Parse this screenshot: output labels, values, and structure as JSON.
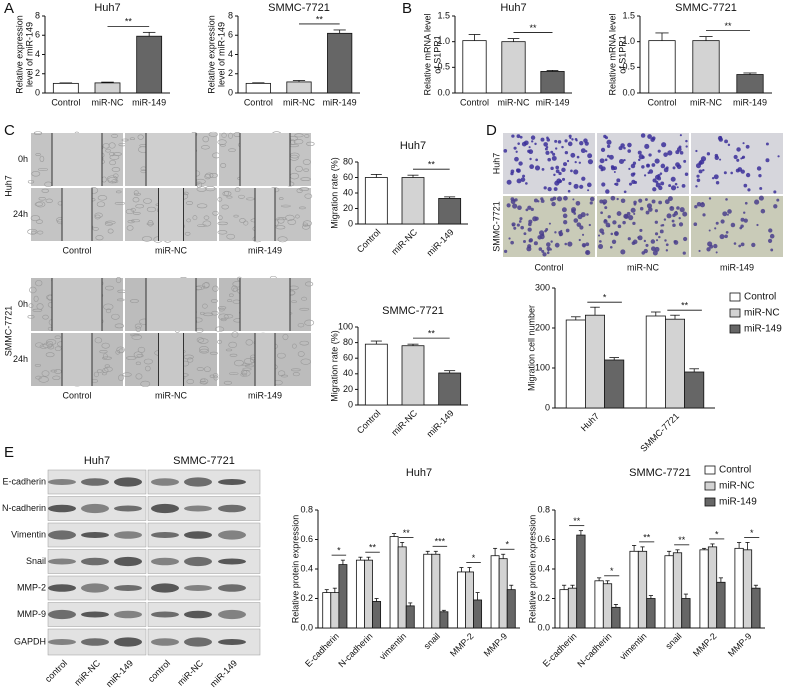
{
  "panels": [
    "A",
    "B",
    "C",
    "D",
    "E"
  ],
  "migration_images": {
    "groups": [
      {
        "label": "Huh7",
        "rows": [
          "0h",
          "24h"
        ]
      },
      {
        "label": "SMMC-7721",
        "rows": [
          "0h",
          "24h"
        ]
      }
    ],
    "columns": [
      "Control",
      "miR-NC",
      "miR-149"
    ]
  },
  "invasion_images": {
    "rows": [
      "Huh7",
      "SMMC-7721"
    ],
    "columns": [
      "Control",
      "miR-NC",
      "miR-149"
    ]
  },
  "blot": {
    "groups": [
      "Huh7",
      "SMMC-7721"
    ],
    "proteins": [
      "E-cadherin",
      "N-cadherin",
      "Vimentin",
      "Snail",
      "MMP-2",
      "MMP-9",
      "GAPDH"
    ],
    "lanes": [
      "control",
      "miR-NC",
      "miR-149"
    ]
  },
  "chart_data": [
    {
      "type": "bar",
      "title": "Huh7",
      "ylabel": [
        "Relative expression",
        "level of miR-149"
      ],
      "categories": [
        "Control",
        "miR-NC",
        "miR-149"
      ],
      "values": [
        1.0,
        1.05,
        5.9
      ],
      "errors": [
        0.05,
        0.08,
        0.4
      ],
      "colors": [
        "#ffffff",
        "#d3d3d3",
        "#666666"
      ],
      "ylim": [
        0,
        8
      ],
      "yticks": [
        0,
        2,
        4,
        6,
        8
      ],
      "significance": "**"
    },
    {
      "type": "bar",
      "title": "SMMC-7721",
      "ylabel": [
        "Relative expression",
        "level of miR-149"
      ],
      "categories": [
        "Control",
        "miR-NC",
        "miR-149"
      ],
      "values": [
        1.0,
        1.15,
        6.2
      ],
      "errors": [
        0.06,
        0.15,
        0.35
      ],
      "colors": [
        "#ffffff",
        "#d3d3d3",
        "#666666"
      ],
      "ylim": [
        0,
        8
      ],
      "yticks": [
        0,
        2,
        4,
        6,
        8
      ],
      "significance": "**"
    },
    {
      "type": "bar",
      "title": "Huh7",
      "ylabel": [
        "Relative mRNA level",
        "of S1PR1"
      ],
      "categories": [
        "Control",
        "miR-NC",
        "miR-149"
      ],
      "values": [
        1.02,
        1.0,
        0.42
      ],
      "errors": [
        0.12,
        0.06,
        0.02
      ],
      "colors": [
        "#ffffff",
        "#d3d3d3",
        "#666666"
      ],
      "ylim": [
        0,
        1.5
      ],
      "yticks": [
        {
          "value": 0,
          "label": "0.0"
        },
        {
          "value": 0.5,
          "label": "0.5"
        },
        {
          "value": 1,
          "label": "1.0"
        },
        {
          "value": 1.5,
          "label": "1.5"
        }
      ],
      "significance": "**"
    },
    {
      "type": "bar",
      "title": "SMMC-7721",
      "ylabel": [
        "Relative mRNA level",
        "of S1PR1"
      ],
      "categories": [
        "Control",
        "miR-NC",
        "miR-149"
      ],
      "values": [
        1.02,
        1.02,
        0.36
      ],
      "errors": [
        0.15,
        0.08,
        0.03
      ],
      "colors": [
        "#ffffff",
        "#d3d3d3",
        "#666666"
      ],
      "ylim": [
        0,
        1.5
      ],
      "yticks": [
        {
          "value": 0,
          "label": "0.0"
        },
        {
          "value": 0.5,
          "label": "0.5"
        },
        {
          "value": 1,
          "label": "1.0"
        },
        {
          "value": 1.5,
          "label": "1.5"
        }
      ],
      "significance": "**"
    },
    {
      "type": "bar",
      "title": "Huh7",
      "ylabel": [
        "Migration rate (%)"
      ],
      "categories": [
        "Control",
        "miR-NC",
        "miR-149"
      ],
      "values": [
        60,
        60,
        33
      ],
      "errors": [
        4,
        3,
        2
      ],
      "colors": [
        "#ffffff",
        "#d3d3d3",
        "#666666"
      ],
      "ylim": [
        0,
        80
      ],
      "yticks": [
        0,
        20,
        40,
        60,
        80
      ],
      "significance": "**"
    },
    {
      "type": "bar",
      "title": "SMMC-7721",
      "ylabel": [
        "Migration rate (%)"
      ],
      "categories": [
        "Control",
        "miR-NC",
        "miR-149"
      ],
      "values": [
        78,
        76,
        41
      ],
      "errors": [
        4,
        2,
        3
      ],
      "colors": [
        "#ffffff",
        "#d3d3d3",
        "#666666"
      ],
      "ylim": [
        0,
        100
      ],
      "yticks": [
        0,
        20,
        40,
        60,
        80,
        100
      ],
      "significance": "**"
    },
    {
      "type": "grouped_bar",
      "ylabel": [
        "Migration cell number"
      ],
      "categories": [
        "Huh7",
        "SMMC-7721"
      ],
      "series": [
        {
          "name": "Control",
          "color": "#ffffff",
          "values": [
            220,
            230
          ],
          "errors": [
            8,
            10
          ]
        },
        {
          "name": "miR-NC",
          "color": "#d3d3d3",
          "values": [
            232,
            222
          ],
          "errors": [
            20,
            10
          ]
        },
        {
          "name": "miR-149",
          "color": "#666666",
          "values": [
            120,
            90
          ],
          "errors": [
            6,
            8
          ]
        }
      ],
      "ylim": [
        0,
        300
      ],
      "yticks": [
        0,
        100,
        200,
        300
      ],
      "significance": [
        "*",
        "**"
      ],
      "legend": true
    },
    {
      "type": "grouped_bar",
      "title": "Huh7",
      "ylabel": [
        "Relative protein expression"
      ],
      "categories": [
        "E-cadherin",
        "N-cadherin",
        "vimentin",
        "snail",
        "MMP-2",
        "MMP-9"
      ],
      "series": [
        {
          "name": "Control",
          "color": "#ffffff",
          "values": [
            0.24,
            0.46,
            0.62,
            0.5,
            0.38,
            0.49
          ],
          "errors": [
            0.02,
            0.02,
            0.02,
            0.02,
            0.03,
            0.05
          ]
        },
        {
          "name": "miR-NC",
          "color": "#d3d3d3",
          "values": [
            0.24,
            0.46,
            0.55,
            0.5,
            0.38,
            0.47
          ],
          "errors": [
            0.03,
            0.02,
            0.03,
            0.02,
            0.03,
            0.03
          ]
        },
        {
          "name": "miR-149",
          "color": "#666666",
          "values": [
            0.43,
            0.18,
            0.15,
            0.11,
            0.19,
            0.26
          ],
          "errors": [
            0.03,
            0.02,
            0.02,
            0.01,
            0.05,
            0.03
          ]
        }
      ],
      "ylim": [
        0,
        0.8
      ],
      "yticks": [
        {
          "value": 0,
          "label": "0.0"
        },
        {
          "value": 0.2,
          "label": "0.2"
        },
        {
          "value": 0.4,
          "label": "0.4"
        },
        {
          "value": 0.6,
          "label": "0.6"
        },
        {
          "value": 0.8,
          "label": "0.8"
        }
      ],
      "significance": [
        "*",
        "**",
        "**",
        "***",
        "*",
        "*"
      ],
      "legend": false
    },
    {
      "type": "grouped_bar",
      "title": "SMMC-7721",
      "ylabel": [
        "Relative protein expression"
      ],
      "categories": [
        "E-cadherin",
        "N-cadherin",
        "vimentin",
        "snail",
        "MMP-2",
        "MMP-9"
      ],
      "series": [
        {
          "name": "Control",
          "color": "#ffffff",
          "values": [
            0.26,
            0.32,
            0.52,
            0.49,
            0.53,
            0.54
          ],
          "errors": [
            0.03,
            0.02,
            0.04,
            0.03,
            0.01,
            0.04
          ]
        },
        {
          "name": "miR-NC",
          "color": "#d3d3d3",
          "values": [
            0.27,
            0.3,
            0.52,
            0.51,
            0.55,
            0.53
          ],
          "errors": [
            0.02,
            0.02,
            0.03,
            0.02,
            0.02,
            0.05
          ]
        },
        {
          "name": "miR-149",
          "color": "#666666",
          "values": [
            0.63,
            0.14,
            0.2,
            0.2,
            0.31,
            0.27
          ],
          "errors": [
            0.03,
            0.02,
            0.02,
            0.03,
            0.03,
            0.02
          ]
        }
      ],
      "ylim": [
        0,
        0.8
      ],
      "yticks": [
        {
          "value": 0,
          "label": "0.0"
        },
        {
          "value": 0.2,
          "label": "0.2"
        },
        {
          "value": 0.4,
          "label": "0.4"
        },
        {
          "value": 0.6,
          "label": "0.6"
        },
        {
          "value": 0.8,
          "label": "0.8"
        }
      ],
      "significance": [
        "**",
        "*",
        "**",
        "**",
        "*",
        "*"
      ],
      "legend": true
    }
  ]
}
